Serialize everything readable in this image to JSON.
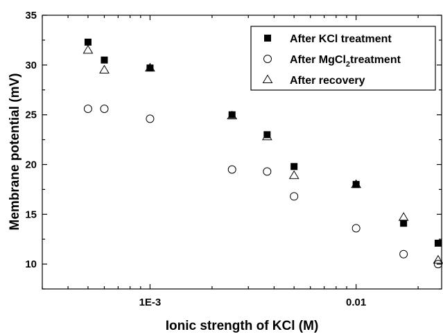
{
  "chart_data": {
    "type": "scatter",
    "xlabel": "Ionic strength of KCl (M)",
    "ylabel": "Membrane potential (mV)",
    "xscale": "log",
    "xlim": [
      0.0003,
      0.026
    ],
    "ylim": [
      7.5,
      35
    ],
    "x_tick_labels": [
      {
        "value": 0.001,
        "label": "1E-3"
      },
      {
        "value": 0.01,
        "label": "0.01"
      }
    ],
    "y_ticks": [
      10,
      15,
      20,
      25,
      30,
      35
    ],
    "grid": false,
    "legend_position": "top-right",
    "series": [
      {
        "name_parts": [
          "After KCl treatment"
        ],
        "marker": "filled-square",
        "color": "#000000",
        "x": [
          0.0005,
          0.0006,
          0.001,
          0.0025,
          0.0037,
          0.005,
          0.01,
          0.017,
          0.025
        ],
        "y": [
          32.3,
          30.5,
          29.7,
          25.0,
          23.0,
          19.8,
          18.0,
          14.1,
          12.1
        ]
      },
      {
        "name_parts": [
          "After MgCl",
          "2",
          "treatment"
        ],
        "marker": "open-circle",
        "color": "#000000",
        "x": [
          0.0005,
          0.0006,
          0.001,
          0.0025,
          0.0037,
          0.005,
          0.01,
          0.017,
          0.025
        ],
        "y": [
          25.6,
          25.6,
          24.6,
          19.5,
          19.3,
          16.8,
          13.6,
          11.0,
          10.0
        ]
      },
      {
        "name_parts": [
          "After recovery"
        ],
        "marker": "open-triangle",
        "color": "#000000",
        "x": [
          0.0005,
          0.0006,
          0.001,
          0.0025,
          0.0037,
          0.005,
          0.01,
          0.017,
          0.025
        ],
        "y": [
          31.5,
          29.5,
          29.7,
          24.9,
          22.8,
          18.9,
          18.0,
          14.7,
          10.4
        ]
      }
    ]
  }
}
